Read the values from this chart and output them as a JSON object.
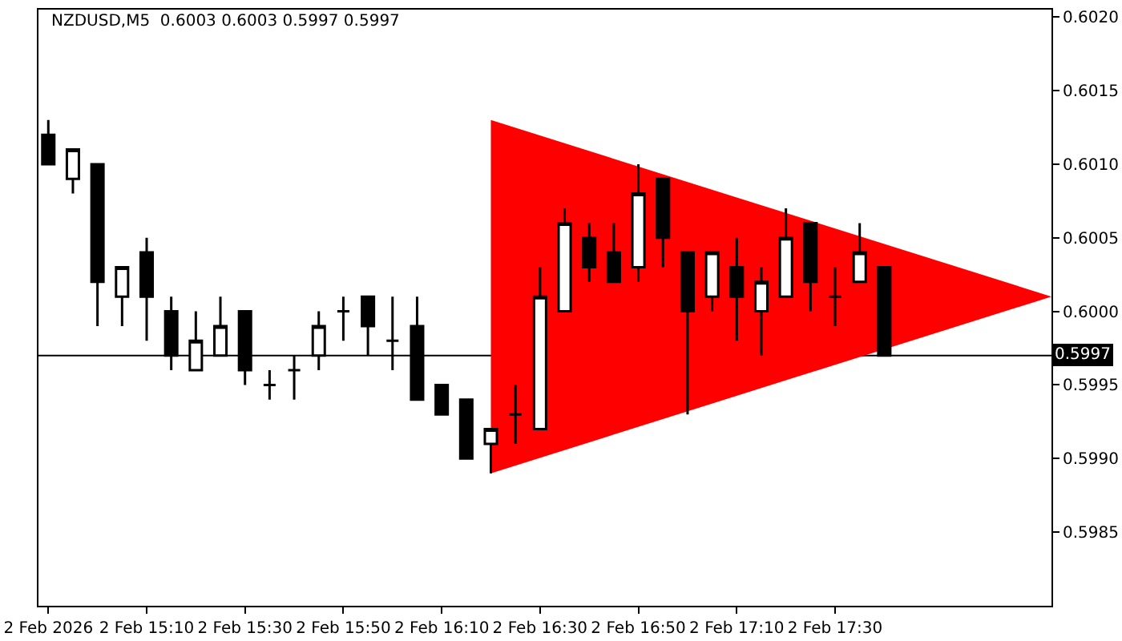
{
  "chart_data": {
    "type": "candlestick",
    "title": "NZDUSD,M5  0.6003 0.6003 0.5997 0.5997",
    "x": [
      "2026-02-02T14:50",
      "2026-02-02T14:55",
      "2026-02-02T15:00",
      "2026-02-02T15:05",
      "2026-02-02T15:10",
      "2026-02-02T15:15",
      "2026-02-02T15:20",
      "2026-02-02T15:25",
      "2026-02-02T15:30",
      "2026-02-02T15:35",
      "2026-02-02T15:40",
      "2026-02-02T15:45",
      "2026-02-02T15:50",
      "2026-02-02T15:55",
      "2026-02-02T16:00",
      "2026-02-02T16:05",
      "2026-02-02T16:10",
      "2026-02-02T16:15",
      "2026-02-02T16:20",
      "2026-02-02T16:25",
      "2026-02-02T16:30",
      "2026-02-02T16:35",
      "2026-02-02T16:40",
      "2026-02-02T16:45",
      "2026-02-02T16:50",
      "2026-02-02T16:55",
      "2026-02-02T17:00",
      "2026-02-02T17:05",
      "2026-02-02T17:10",
      "2026-02-02T17:15",
      "2026-02-02T17:20",
      "2026-02-02T17:25",
      "2026-02-02T17:30",
      "2026-02-02T17:35",
      "2026-02-02T17:40"
    ],
    "ohlc": [
      [
        0.6012,
        0.6013,
        0.601,
        0.601
      ],
      [
        0.6009,
        0.6011,
        0.6008,
        0.6011
      ],
      [
        0.601,
        0.601,
        0.5999,
        0.6002
      ],
      [
        0.6001,
        0.6003,
        0.5999,
        0.6003
      ],
      [
        0.6004,
        0.6005,
        0.5998,
        0.6001
      ],
      [
        0.6,
        0.6001,
        0.5996,
        0.5997
      ],
      [
        0.5996,
        0.6,
        0.5996,
        0.5998
      ],
      [
        0.5997,
        0.6001,
        0.5997,
        0.5999
      ],
      [
        0.6,
        0.6,
        0.5995,
        0.5996
      ],
      [
        0.5995,
        0.5996,
        0.5994,
        0.5995
      ],
      [
        0.5996,
        0.5997,
        0.5994,
        0.5996
      ],
      [
        0.5997,
        0.6,
        0.5996,
        0.5999
      ],
      [
        0.6,
        0.6001,
        0.5998,
        0.6
      ],
      [
        0.6001,
        0.6001,
        0.5997,
        0.5999
      ],
      [
        0.5998,
        0.6001,
        0.5996,
        0.5998
      ],
      [
        0.5999,
        0.6001,
        0.5994,
        0.5994
      ],
      [
        0.5995,
        0.5995,
        0.5993,
        0.5993
      ],
      [
        0.5994,
        0.5994,
        0.599,
        0.599
      ],
      [
        0.5991,
        0.5992,
        0.5989,
        0.5992
      ],
      [
        0.5993,
        0.5995,
        0.5991,
        0.5993
      ],
      [
        0.5992,
        0.6003,
        0.5992,
        0.6001
      ],
      [
        0.6,
        0.6007,
        0.6,
        0.6006
      ],
      [
        0.6005,
        0.6006,
        0.6002,
        0.6003
      ],
      [
        0.6004,
        0.6006,
        0.6002,
        0.6002
      ],
      [
        0.6003,
        0.601,
        0.6002,
        0.6008
      ],
      [
        0.6009,
        0.6009,
        0.6003,
        0.6005
      ],
      [
        0.6004,
        0.6004,
        0.5993,
        0.6
      ],
      [
        0.6001,
        0.6004,
        0.6,
        0.6004
      ],
      [
        0.6003,
        0.6005,
        0.5998,
        0.6001
      ],
      [
        0.6,
        0.6003,
        0.5997,
        0.6002
      ],
      [
        0.6001,
        0.6007,
        0.6001,
        0.6005
      ],
      [
        0.6006,
        0.6006,
        0.6,
        0.6002
      ],
      [
        0.6001,
        0.6003,
        0.5999,
        0.6001
      ],
      [
        0.6002,
        0.6006,
        0.6002,
        0.6004
      ],
      [
        0.6003,
        0.6003,
        0.5997,
        0.5997
      ]
    ],
    "series": [
      {
        "type": "area",
        "x": [
          "2026-02-02T16:20",
          "2026-02-02T18:14",
          "2026-02-02T16:20"
        ],
        "values": [
          0.6013,
          0.6001,
          0.5989
        ],
        "color": "#ff0000"
      }
    ],
    "xlim": [
      "2026-02-02T14:48",
      "2026-02-02T18:14"
    ],
    "xticks": [
      {
        "value": "2026-02-02T14:50",
        "label": "2 Feb 2026"
      },
      {
        "value": "2026-02-02T15:10",
        "label": "2 Feb 15:10"
      },
      {
        "value": "2026-02-02T15:30",
        "label": "2 Feb 15:30"
      },
      {
        "value": "2026-02-02T15:50",
        "label": "2 Feb 15:50"
      },
      {
        "value": "2026-02-02T16:10",
        "label": "2 Feb 16:10"
      },
      {
        "value": "2026-02-02T16:30",
        "label": "2 Feb 16:30"
      },
      {
        "value": "2026-02-02T16:50",
        "label": "2 Feb 16:50"
      },
      {
        "value": "2026-02-02T17:10",
        "label": "2 Feb 17:10"
      },
      {
        "value": "2026-02-02T17:30",
        "label": "2 Feb 17:30"
      }
    ],
    "ylim": [
      0.598,
      0.60205
    ],
    "yticks": [
      {
        "value": 0.5985,
        "label": "0.5985"
      },
      {
        "value": 0.599,
        "label": "0.5990"
      },
      {
        "value": 0.5995,
        "label": "0.5995"
      },
      {
        "value": 0.6,
        "label": "0.6000"
      },
      {
        "value": 0.6005,
        "label": "0.6005"
      },
      {
        "value": 0.601,
        "label": "0.6010"
      },
      {
        "value": 0.6015,
        "label": "0.6015"
      },
      {
        "value": 0.602,
        "label": "0.6020"
      }
    ],
    "ref_lines": [
      {
        "axis": "y",
        "value": 0.5997,
        "label": "0.5997",
        "color": "#000000"
      }
    ]
  }
}
